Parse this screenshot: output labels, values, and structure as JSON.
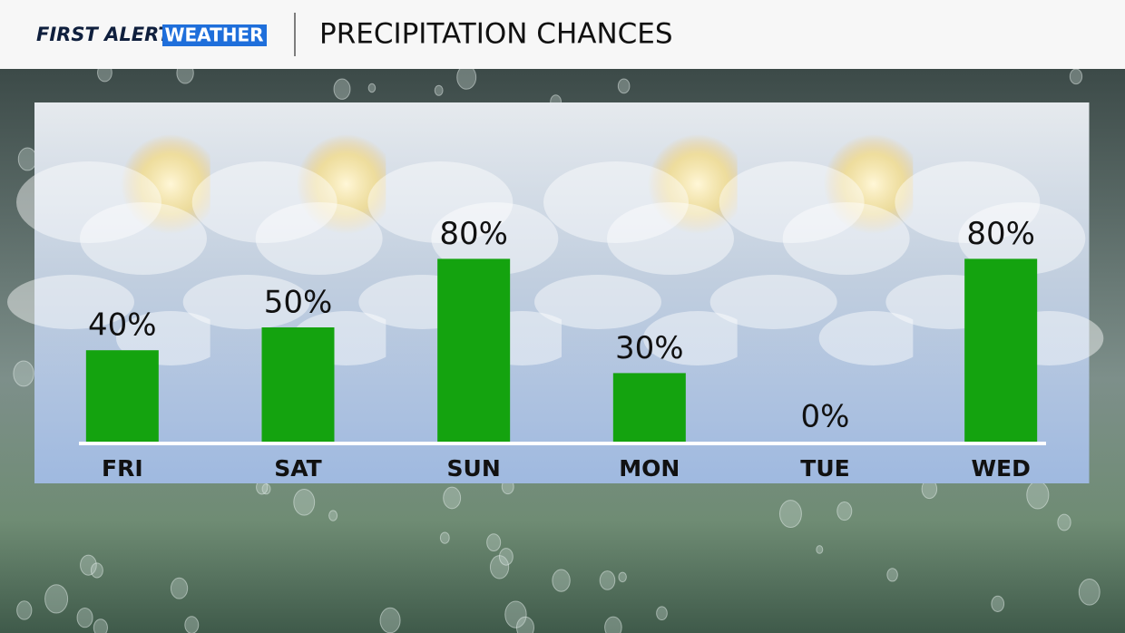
{
  "header": {
    "brand": "FIRST ALERT",
    "brand_highlight": "WEATHER"
  },
  "chart_data": {
    "type": "bar",
    "title": "PRECIPITATION CHANCES",
    "categories": [
      "FRI",
      "SAT",
      "SUN",
      "MON",
      "TUE",
      "WED"
    ],
    "values": [
      40,
      50,
      80,
      30,
      0,
      80
    ],
    "value_labels": [
      "40%",
      "50%",
      "80%",
      "30%",
      "0%",
      "80%"
    ],
    "color": "#14a30f"
  }
}
